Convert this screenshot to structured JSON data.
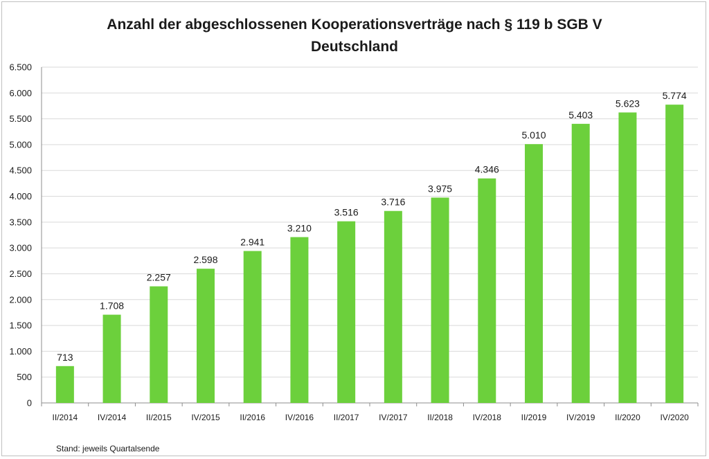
{
  "chart_data": {
    "type": "bar",
    "title": "Anzahl der abgeschlossenen Kooperationsverträge nach § 119 b SGB V",
    "subtitle": "Deutschland",
    "xlabel": "",
    "ylabel": "",
    "categories": [
      "II/2014",
      "IV/2014",
      "II/2015",
      "IV/2015",
      "II/2016",
      "IV/2016",
      "II/2017",
      "IV/2017",
      "II/2018",
      "IV/2018",
      "II/2019",
      "IV/2019",
      "II/2020",
      "IV/2020"
    ],
    "values": [
      713,
      1708,
      2257,
      2598,
      2941,
      3210,
      3516,
      3716,
      3975,
      4346,
      5010,
      5403,
      5623,
      5774
    ],
    "value_labels": [
      "713",
      "1.708",
      "2.257",
      "2.598",
      "2.941",
      "3.210",
      "3.516",
      "3.716",
      "3.975",
      "4.346",
      "5.010",
      "5.403",
      "5.623",
      "5.774"
    ],
    "ylim": [
      0,
      6500
    ],
    "yticks": [
      0,
      500,
      1000,
      1500,
      2000,
      2500,
      3000,
      3500,
      4000,
      4500,
      5000,
      5500,
      6000,
      6500
    ],
    "ytick_labels": [
      "0",
      "500",
      "1.000",
      "1.500",
      "2.000",
      "2.500",
      "3.000",
      "3.500",
      "4.000",
      "4.500",
      "5.000",
      "5.500",
      "6.000",
      "6.500"
    ],
    "grid": true,
    "legend": "none",
    "bar_color": "#6cd03c",
    "grid_color": "#d9d9d9",
    "axis_color": "#8c8c8c"
  },
  "footnote": "Stand: jeweils Quartalsende"
}
